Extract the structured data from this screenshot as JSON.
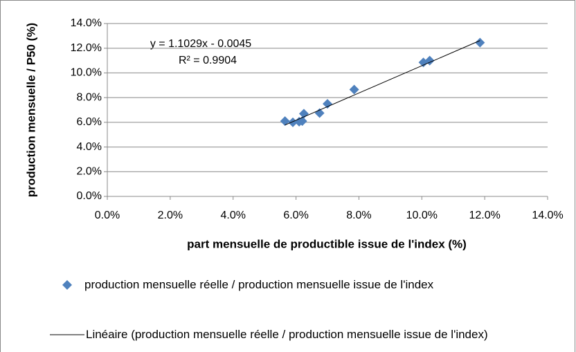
{
  "chart_data": {
    "type": "scatter",
    "xlabel": "part mensuelle de productible issue de l'index (%)",
    "ylabel": "production mensuelle / P50 (%)",
    "annotations": [
      "y = 1.1029x - 0.0045",
      "R² = 0.9904"
    ],
    "series": [
      {
        "name": "production mensuelle réelle / production mensuelle issue de l'index",
        "color": "#4f81bd",
        "x": [
          5.65,
          5.9,
          6.1,
          6.2,
          6.25,
          6.75,
          7.0,
          7.85,
          10.05,
          10.25,
          11.85
        ],
        "values": [
          6.1,
          6.0,
          6.05,
          6.1,
          6.7,
          6.75,
          7.5,
          8.65,
          10.85,
          11.0,
          12.45
        ]
      }
    ],
    "trendline": {
      "name": "Linéaire (production mensuelle réelle / production mensuelle issue de l'index)",
      "color": "#000000",
      "x": [
        5.65,
        11.85
      ],
      "values": [
        5.78,
        12.62
      ]
    },
    "xlim": [
      0,
      14
    ],
    "xticks": [
      {
        "value": 0,
        "label": "0.0%"
      },
      {
        "value": 2,
        "label": "2.0%"
      },
      {
        "value": 4,
        "label": "4.0%"
      },
      {
        "value": 6,
        "label": "6.0%"
      },
      {
        "value": 8,
        "label": "8.0%"
      },
      {
        "value": 10,
        "label": "10.0%"
      },
      {
        "value": 12,
        "label": "12.0%"
      },
      {
        "value": 14,
        "label": "14.0%"
      }
    ],
    "ylim": [
      0,
      14
    ],
    "yticks": [
      {
        "value": 0,
        "label": "0.0%"
      },
      {
        "value": 2,
        "label": "2.0%"
      },
      {
        "value": 4,
        "label": "4.0%"
      },
      {
        "value": 6,
        "label": "6.0%"
      },
      {
        "value": 8,
        "label": "8.0%"
      },
      {
        "value": 10,
        "label": "10.0%"
      },
      {
        "value": 12,
        "label": "12.0%"
      },
      {
        "value": 14,
        "label": "14.0%"
      }
    ],
    "grid": true
  }
}
